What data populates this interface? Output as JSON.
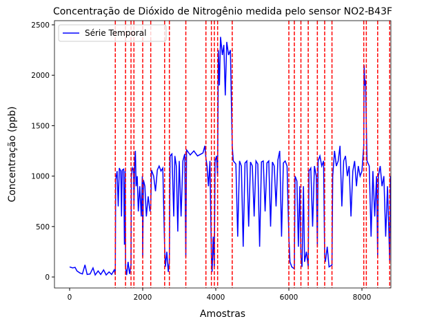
{
  "chart_data": {
    "type": "line",
    "title": "Concentração de Dióxido de Nitrogênio medida pelo sensor NO2-B43F",
    "xlabel": "Amostras",
    "ylabel": "Concentração (ppb)",
    "xlim": [
      -415,
      8792
    ],
    "ylim": [
      -109,
      2541
    ],
    "xticks": [
      0,
      2000,
      4000,
      6000,
      8000
    ],
    "yticks": [
      0,
      500,
      1000,
      1500,
      2000,
      2500
    ],
    "legend": "upper left",
    "series": [
      {
        "name": "Série Temporal",
        "color": "#0000ff",
        "x": [
          0,
          80,
          150,
          200,
          280,
          350,
          420,
          480,
          560,
          640,
          700,
          780,
          850,
          930,
          1000,
          1080,
          1150,
          1220,
          1250,
          1260,
          1300,
          1330,
          1360,
          1400,
          1420,
          1440,
          1480,
          1500,
          1520,
          1530,
          1560,
          1600,
          1640,
          1680,
          1690,
          1720,
          1750,
          1760,
          1780,
          1800,
          1820,
          1850,
          1880,
          1920,
          1960,
          1990,
          2000,
          2020,
          2060,
          2100,
          2150,
          2200,
          2220,
          2240,
          2300,
          2350,
          2400,
          2450,
          2500,
          2550,
          2600,
          2620,
          2660,
          2700,
          2730,
          2750,
          2800,
          2850,
          2880,
          2920,
          2960,
          3000,
          3050,
          3100,
          3150,
          3180,
          3200,
          3300,
          3400,
          3500,
          3600,
          3650,
          3700,
          3730,
          3760,
          3800,
          3840,
          3880,
          3900,
          3930,
          3960,
          3980,
          4020,
          4050,
          4070,
          4100,
          4130,
          4180,
          4220,
          4260,
          4300,
          4350,
          4400,
          4450,
          4480,
          4550,
          4600,
          4650,
          4700,
          4750,
          4800,
          4850,
          4900,
          4950,
          5000,
          5050,
          5100,
          5150,
          5200,
          5250,
          5300,
          5350,
          5400,
          5450,
          5500,
          5550,
          5600,
          5650,
          5700,
          5750,
          5800,
          5850,
          5900,
          5950,
          6000,
          6030,
          6080,
          6150,
          6170,
          6220,
          6260,
          6300,
          6330,
          6360,
          6400,
          6430,
          6480,
          6530,
          6550,
          6600,
          6650,
          6700,
          6750,
          6780,
          6800,
          6850,
          6900,
          6950,
          6980,
          7000,
          7050,
          7100,
          7180,
          7200,
          7250,
          7300,
          7350,
          7400,
          7450,
          7500,
          7550,
          7600,
          7650,
          7700,
          7750,
          7800,
          7850,
          7900,
          7950,
          8000,
          8050,
          8060,
          8080,
          8100,
          8120,
          8140,
          8200,
          8250,
          8300,
          8350,
          8400,
          8430,
          8450,
          8500,
          8550,
          8600,
          8650,
          8700,
          8760,
          8780
        ],
        "values": [
          100,
          90,
          95,
          60,
          40,
          30,
          120,
          25,
          30,
          90,
          20,
          60,
          25,
          70,
          20,
          50,
          25,
          70,
          20,
          960,
          1050,
          700,
          1080,
          1050,
          600,
          1060,
          1070,
          320,
          1050,
          100,
          20,
          150,
          30,
          120,
          1000,
          1080,
          1060,
          700,
          1120,
          1250,
          900,
          1000,
          650,
          900,
          600,
          1000,
          200,
          960,
          900,
          600,
          800,
          650,
          700,
          1060,
          1000,
          850,
          1060,
          1100,
          1050,
          1080,
          300,
          100,
          250,
          50,
          150,
          1200,
          1220,
          600,
          1200,
          1100,
          450,
          1150,
          600,
          1150,
          1220,
          200,
          1260,
          1210,
          1250,
          1200,
          1220,
          1230,
          1300,
          1180,
          1100,
          900,
          1150,
          200,
          50,
          400,
          100,
          1150,
          1200,
          1000,
          2250,
          1900,
          2380,
          2200,
          2300,
          1800,
          2330,
          2200,
          2250,
          1300,
          1150,
          1120,
          400,
          1150,
          1100,
          300,
          1130,
          1150,
          500,
          1140,
          1100,
          600,
          1150,
          1120,
          300,
          1140,
          1150,
          650,
          1130,
          1150,
          500,
          1140,
          1100,
          700,
          1160,
          1250,
          400,
          1130,
          1150,
          1100,
          400,
          150,
          100,
          80,
          1000,
          950,
          300,
          900,
          200,
          100,
          900,
          150,
          250,
          100,
          1050,
          1080,
          500,
          1100,
          1000,
          300,
          1150,
          1200,
          1100,
          1150,
          200,
          150,
          300,
          100,
          120,
          1000,
          1250,
          1100,
          1150,
          1300,
          700,
          1150,
          1200,
          1000,
          1100,
          600,
          1050,
          1150,
          900,
          1100,
          1000,
          1050,
          1300,
          2100,
          1900,
          1950,
          1500,
          1150,
          1100,
          400,
          1050,
          600,
          1000,
          200,
          1000,
          1100,
          900,
          1000,
          400,
          900,
          150,
          1000
        ]
      }
    ],
    "vlines": {
      "color": "#ff0000",
      "x": [
        1250,
        1530,
        1680,
        1760,
        2000,
        2220,
        2600,
        2730,
        3180,
        3730,
        3880,
        3960,
        4050,
        4450,
        6000,
        6150,
        6330,
        6530,
        6780,
        6980,
        7180,
        8050,
        8120,
        8430,
        8760
      ]
    }
  }
}
